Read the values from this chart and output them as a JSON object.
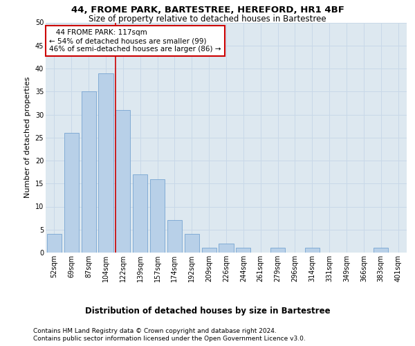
{
  "title": "44, FROME PARK, BARTESTREE, HEREFORD, HR1 4BF",
  "subtitle": "Size of property relative to detached houses in Bartestree",
  "xlabel": "Distribution of detached houses by size in Bartestree",
  "ylabel": "Number of detached properties",
  "footnote1": "Contains HM Land Registry data © Crown copyright and database right 2024.",
  "footnote2": "Contains public sector information licensed under the Open Government Licence v3.0.",
  "annotation_line1": "   44 FROME PARK: 117sqm",
  "annotation_line2": "← 54% of detached houses are smaller (99)",
  "annotation_line3": "46% of semi-detached houses are larger (86) →",
  "bar_categories": [
    "52sqm",
    "69sqm",
    "87sqm",
    "104sqm",
    "122sqm",
    "139sqm",
    "157sqm",
    "174sqm",
    "192sqm",
    "209sqm",
    "226sqm",
    "244sqm",
    "261sqm",
    "279sqm",
    "296sqm",
    "314sqm",
    "331sqm",
    "349sqm",
    "366sqm",
    "383sqm",
    "401sqm"
  ],
  "bar_values": [
    4,
    26,
    35,
    39,
    31,
    17,
    16,
    7,
    4,
    1,
    2,
    1,
    0,
    1,
    0,
    1,
    0,
    0,
    0,
    1,
    0
  ],
  "bar_color": "#b8d0e8",
  "bar_edge_color": "#6699cc",
  "highlight_bin_index": 4,
  "highlight_color": "#cc0000",
  "ylim": [
    0,
    50
  ],
  "yticks": [
    0,
    5,
    10,
    15,
    20,
    25,
    30,
    35,
    40,
    45,
    50
  ],
  "grid_color": "#c8d8e8",
  "bg_color": "#dde8f0",
  "annotation_box_color": "#cc0000",
  "title_fontsize": 9.5,
  "subtitle_fontsize": 8.5,
  "ylabel_fontsize": 8,
  "xlabel_fontsize": 8.5,
  "tick_fontsize": 7,
  "annotation_fontsize": 7.5,
  "footer_fontsize": 6.5
}
